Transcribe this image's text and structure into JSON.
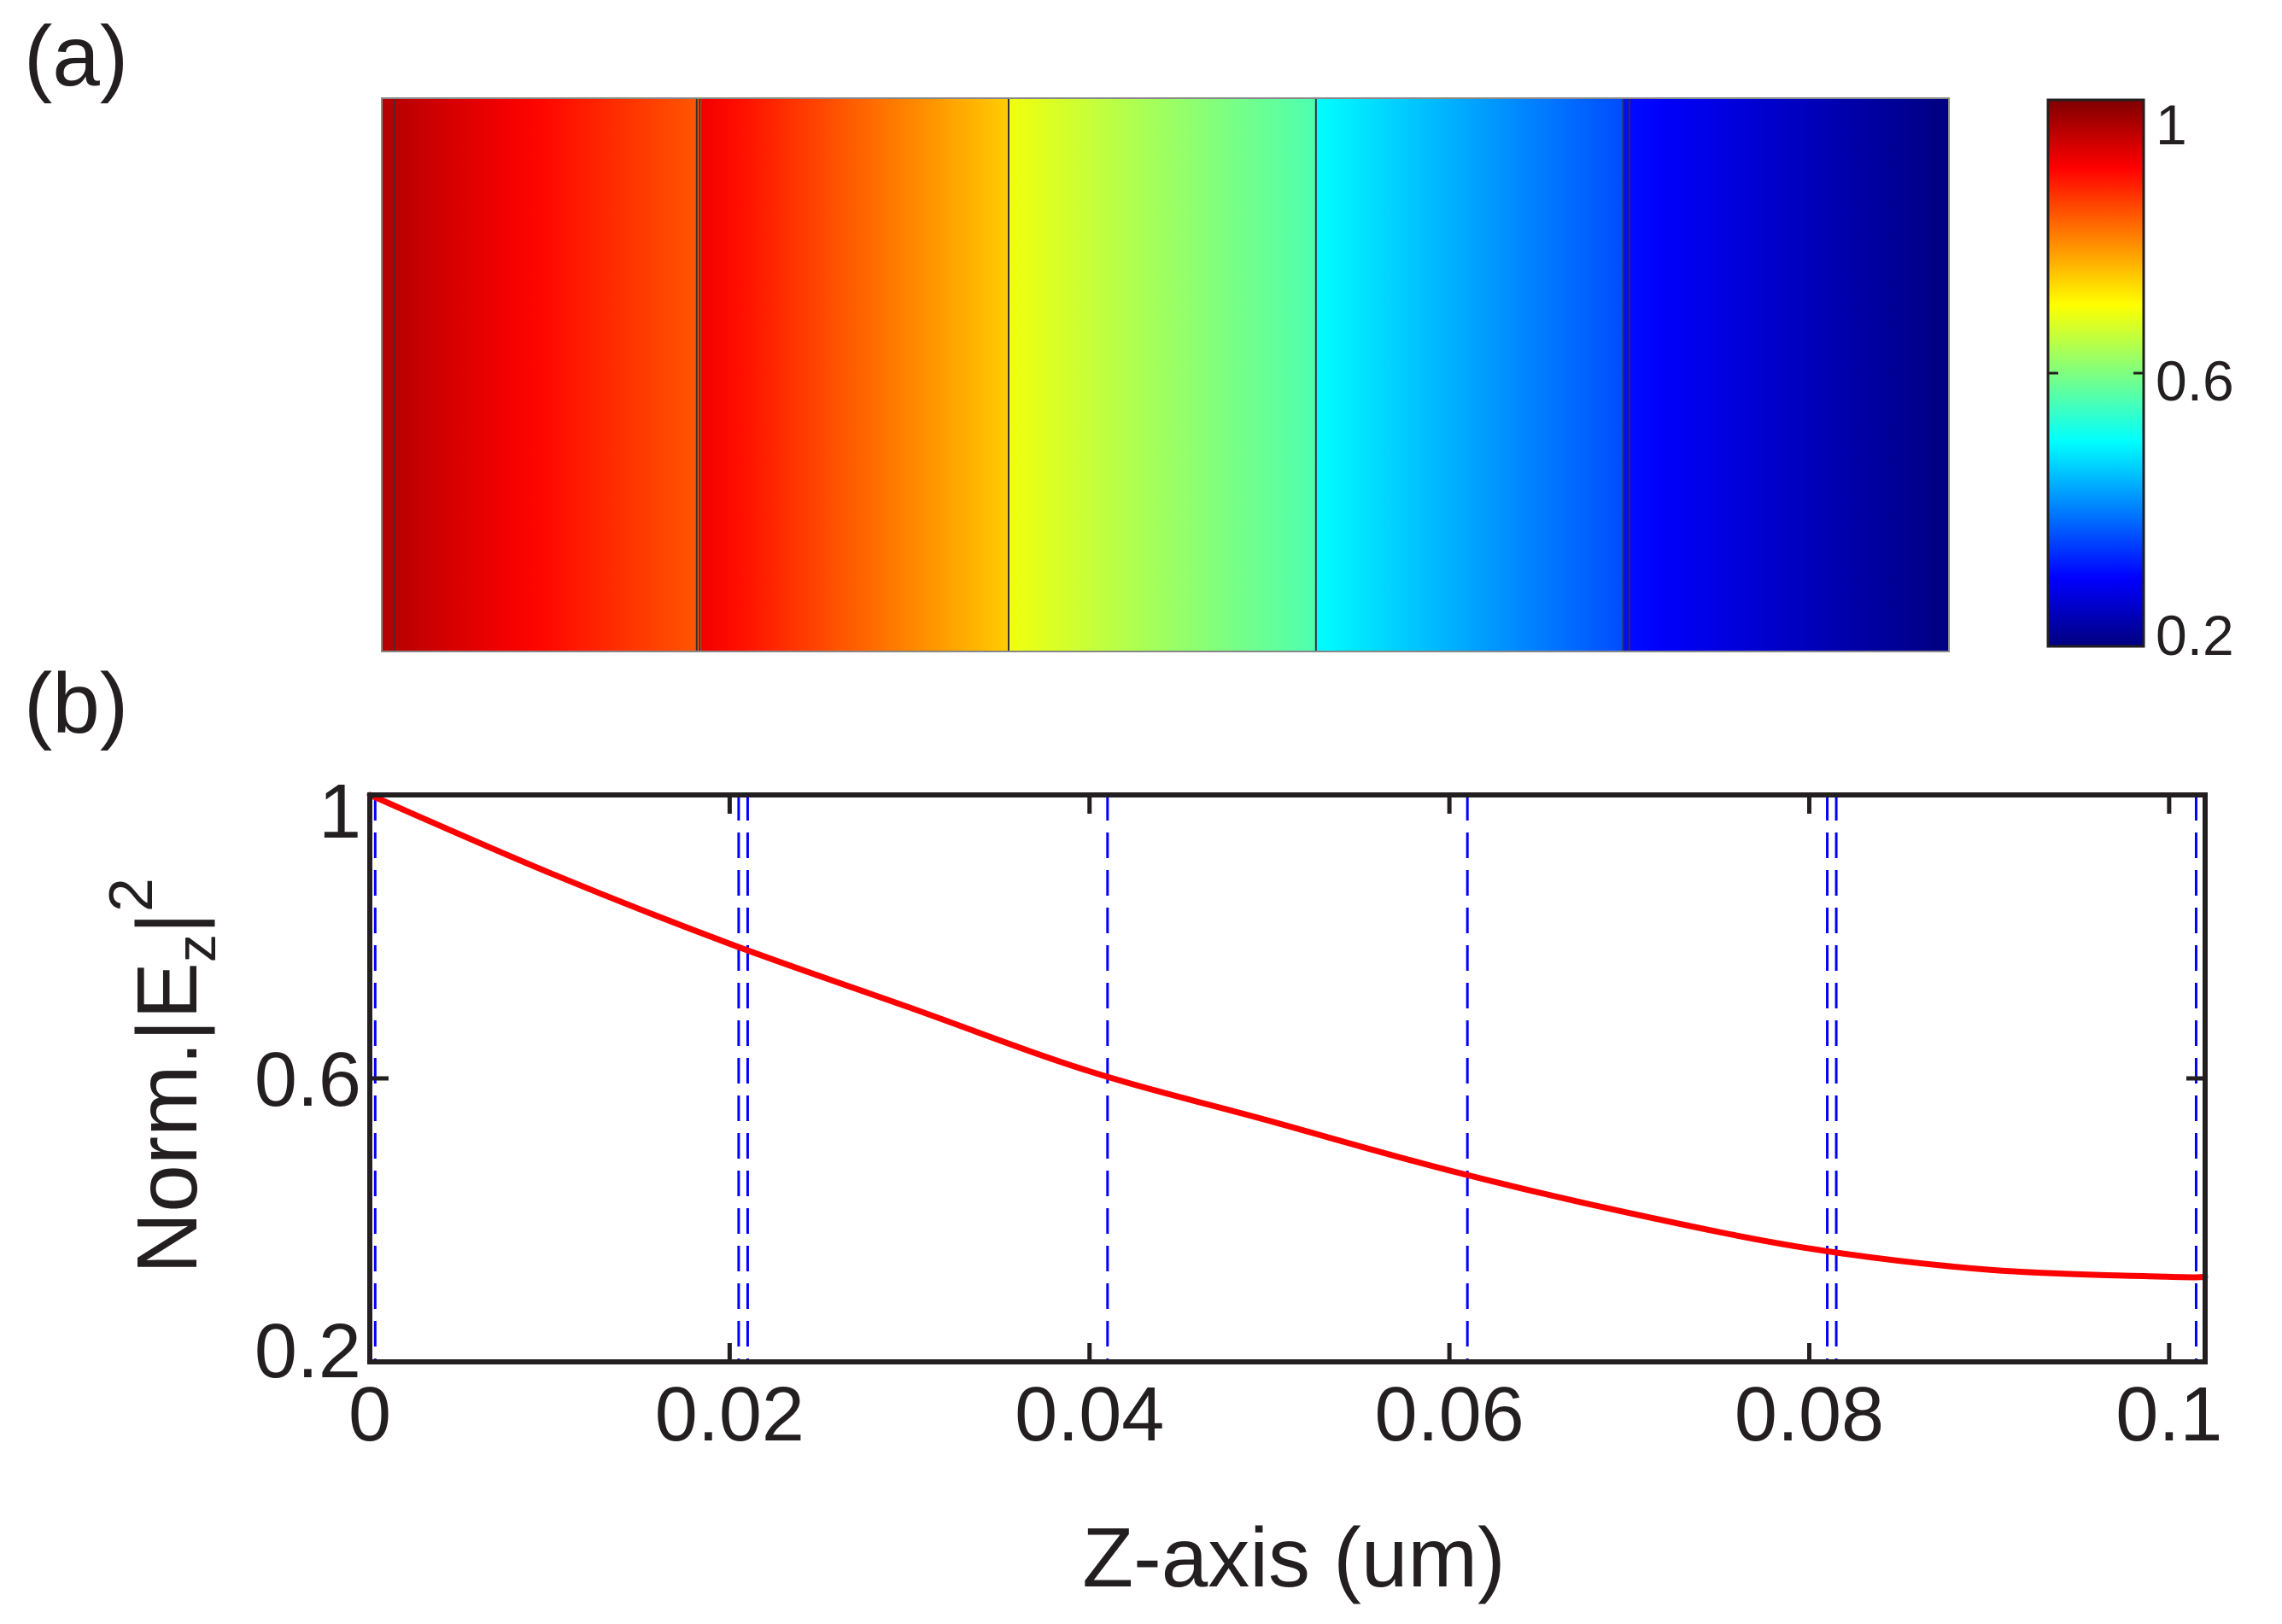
{
  "panels": {
    "a_label": "(a)",
    "b_label": "(b)"
  },
  "colors": {
    "curve": "#ff0000",
    "boundary": "#0000ff",
    "axis": "#231f20",
    "jet": [
      "#00007f",
      "#0000ff",
      "#007fff",
      "#00ffff",
      "#7fff7f",
      "#ffff00",
      "#ff7f00",
      "#ff0000",
      "#7f0000"
    ]
  },
  "chart_data": [
    {
      "type": "heatmap",
      "panel": "(a)",
      "x_range": [
        0,
        0.102
      ],
      "colorbar": {
        "colormap": "jet",
        "range": [
          0.2,
          1
        ],
        "ticks": [
          0.2,
          0.6,
          1
        ],
        "tick_labels": [
          "0.2",
          "0.6",
          "1"
        ]
      },
      "boundaries": [
        0.0008,
        0.0205,
        0.0207,
        0.0408,
        0.0608,
        0.0808,
        0.0812,
        0.102
      ],
      "gradient_segments": [
        {
          "x0": 0.0,
          "x1": 0.0208,
          "c0": 0.96,
          "c1": 0.83
        },
        {
          "x0": 0.0208,
          "x1": 0.0408,
          "c0": 0.91,
          "c1": 0.74
        },
        {
          "x0": 0.0408,
          "x1": 0.0608,
          "c0": 0.69,
          "c1": 0.56
        },
        {
          "x0": 0.0608,
          "x1": 0.0808,
          "c0": 0.5,
          "c1": 0.36
        },
        {
          "x0": 0.0808,
          "x1": 0.102,
          "c0": 0.31,
          "c1": 0.2
        }
      ]
    },
    {
      "type": "line",
      "panel": "(b)",
      "xlabel": "Z-axis (um)",
      "ylabel": "Norm.|Ez|2",
      "ylabel_parts": {
        "main": "Norm.|E",
        "sub": "z",
        "close": "|",
        "sup": "2"
      },
      "xlim": [
        0,
        0.102
      ],
      "ylim": [
        0.2,
        1
      ],
      "xticks": [
        0,
        0.02,
        0.04,
        0.06,
        0.08,
        0.1
      ],
      "xtick_labels": [
        "0",
        "0.02",
        "0.04",
        "0.06",
        "0.08",
        "0.1"
      ],
      "yticks": [
        0.2,
        0.6,
        1
      ],
      "ytick_labels": [
        "0.2",
        "0.6",
        "1"
      ],
      "series": [
        {
          "x": [
            0,
            0.01,
            0.02,
            0.03,
            0.04,
            0.05,
            0.06,
            0.07,
            0.08,
            0.09,
            0.1,
            0.102
          ],
          "y": [
            1.0,
            0.89,
            0.79,
            0.7,
            0.61,
            0.54,
            0.47,
            0.41,
            0.36,
            0.33,
            0.32,
            0.32
          ]
        }
      ],
      "vlines": [
        0.0003,
        0.0205,
        0.021,
        0.041,
        0.061,
        0.081,
        0.0815,
        0.1015
      ]
    }
  ]
}
